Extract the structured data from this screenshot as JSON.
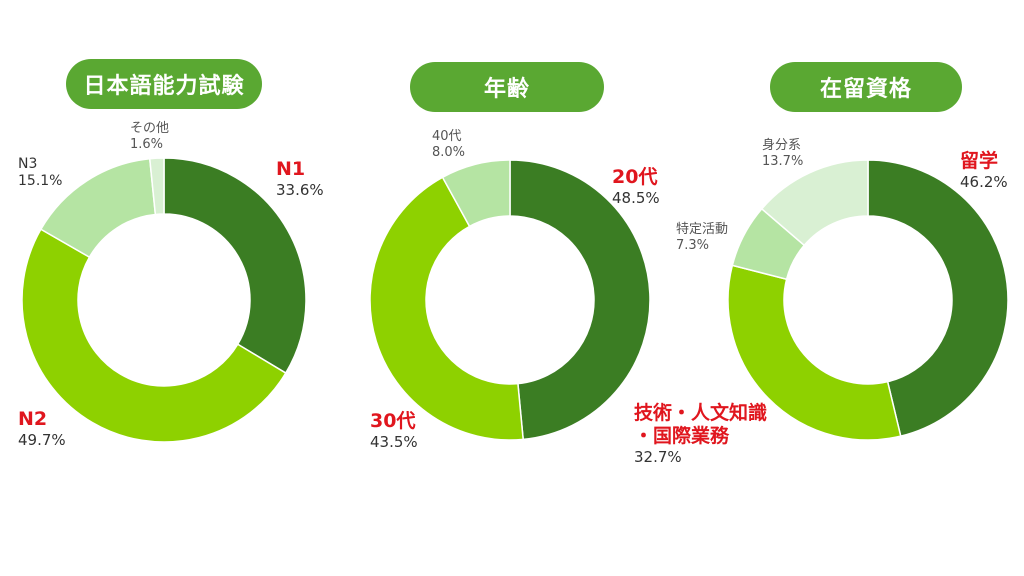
{
  "chart_data": [
    {
      "type": "pie",
      "title": "日本語能力試験",
      "colors": [
        "#3b7d23",
        "#8ed100",
        "#b5e4a3",
        "#d9f0d3"
      ],
      "slices": [
        {
          "name": "N1",
          "value": 33.6,
          "pct_label": "33.6%"
        },
        {
          "name": "N2",
          "value": 49.7,
          "pct_label": "49.7%"
        },
        {
          "name": "N3",
          "value": 15.1,
          "pct_label": "15.1%"
        },
        {
          "name": "その他",
          "value": 1.6,
          "pct_label": "1.6%"
        }
      ]
    },
    {
      "type": "pie",
      "title": "年齢",
      "colors": [
        "#3b7d23",
        "#8ed100",
        "#b5e4a3"
      ],
      "slices": [
        {
          "name": "20代",
          "value": 48.5,
          "pct_label": "48.5%"
        },
        {
          "name": "30代",
          "value": 43.5,
          "pct_label": "43.5%"
        },
        {
          "name": "40代",
          "value": 8.0,
          "pct_label": "8.0%"
        }
      ]
    },
    {
      "type": "pie",
      "title": "在留資格",
      "colors": [
        "#3b7d23",
        "#8ed100",
        "#b5e4a3",
        "#d9f0d3"
      ],
      "slices": [
        {
          "name": "留学",
          "value": 46.2,
          "pct_label": "46.2%"
        },
        {
          "name": "技術・人文知識・国際業務",
          "name_line1": "技術・人文知識",
          "name_line2": "・国際業務",
          "value": 32.7,
          "pct_label": "32.7%"
        },
        {
          "name": "特定活動",
          "value": 7.3,
          "pct_label": "7.3%"
        },
        {
          "name": "身分系",
          "value": 13.7,
          "pct_label": "13.7%"
        }
      ]
    }
  ]
}
